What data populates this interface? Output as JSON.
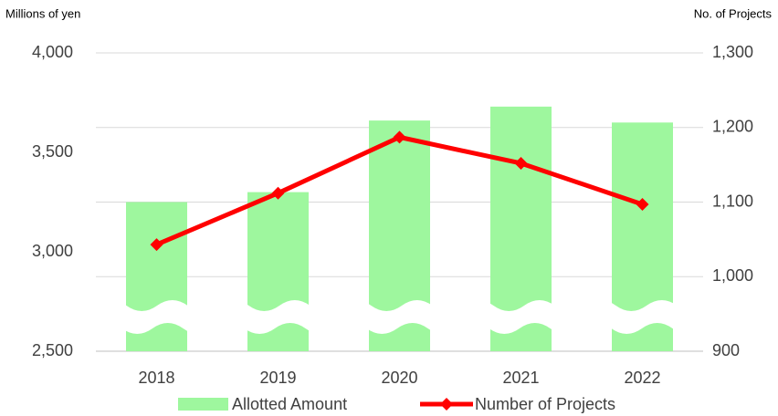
{
  "chart_data": {
    "type": "bar-line",
    "y_label": "Millions of yen",
    "y2_label": "No. of Projects",
    "categories": [
      "2018",
      "2019",
      "2020",
      "2021",
      "2022"
    ],
    "series": [
      {
        "name": "Allotted Amount",
        "type": "bar",
        "color": "#9ef79e",
        "values": [
          3250,
          3300,
          3660,
          3730,
          3650
        ]
      },
      {
        "name": "Number of Projects",
        "type": "line",
        "color": "#ff0000",
        "axis": "y2",
        "values": [
          1043,
          1112,
          1187,
          1152,
          1097
        ]
      }
    ],
    "ylim": [
      2500,
      4000
    ],
    "yticks": [
      {
        "value": 2500,
        "label": "2,500"
      },
      {
        "value": 3000,
        "label": "3,000"
      },
      {
        "value": 3500,
        "label": "3,500"
      },
      {
        "value": 4000,
        "label": "4,000"
      }
    ],
    "y2lim": [
      900,
      1300
    ],
    "y2ticks": [
      900,
      {
        "value": 1000,
        "label": "1,000"
      },
      {
        "value": 1100,
        "label": "1,100"
      },
      {
        "value": 1200,
        "label": "1,200"
      },
      {
        "value": 1300,
        "label": "1,300"
      }
    ],
    "grid": true,
    "legend": "bottom"
  }
}
